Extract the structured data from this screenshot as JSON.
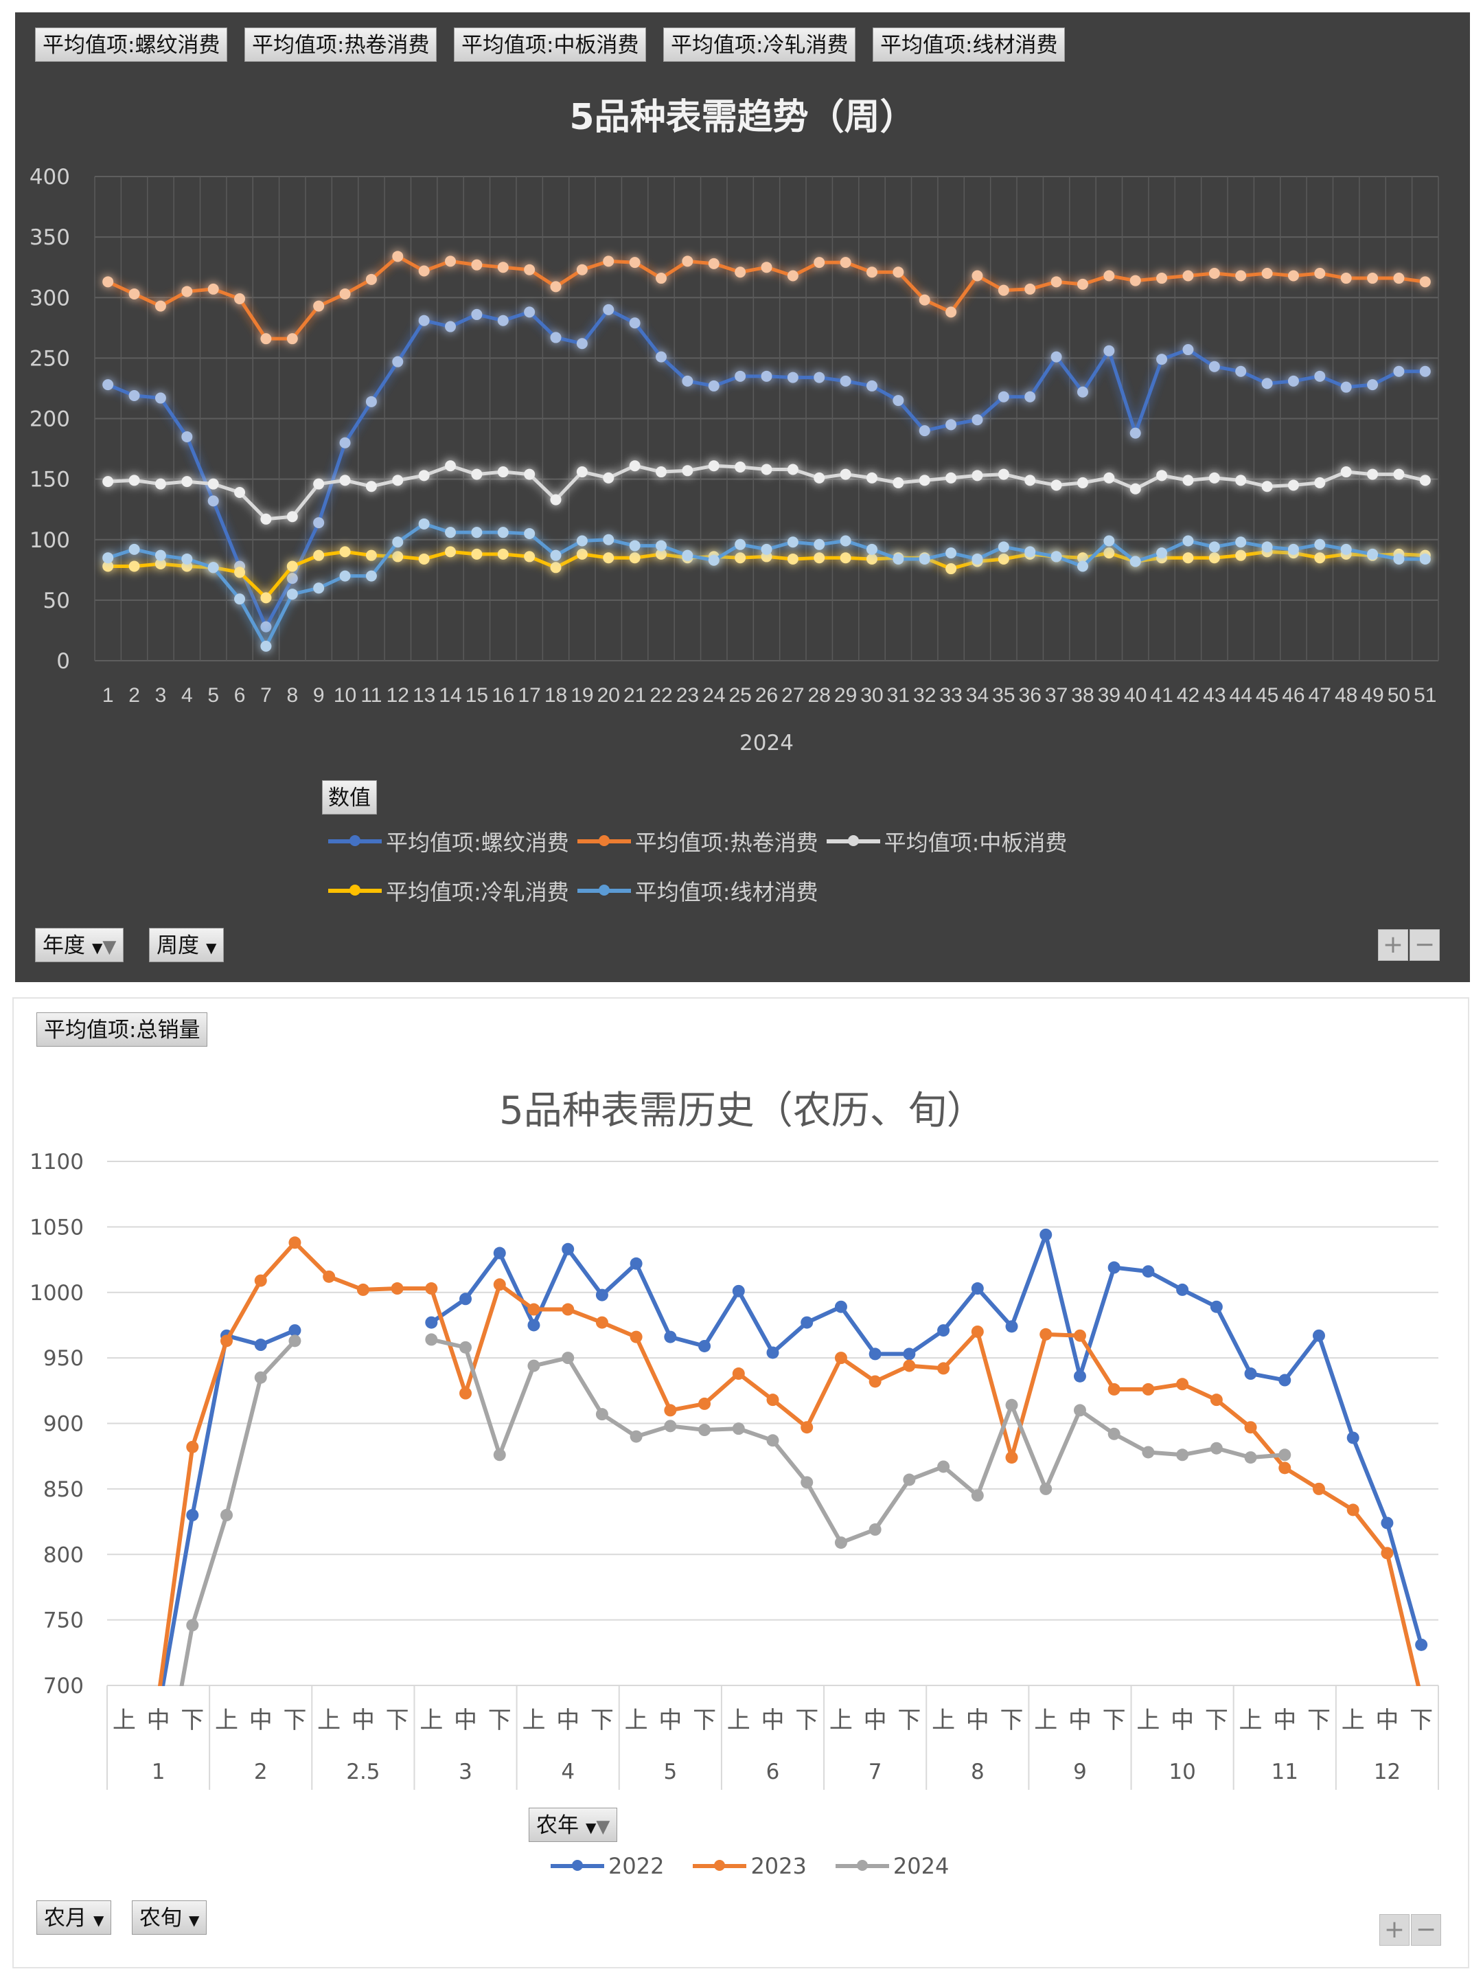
{
  "top_panel": {
    "field_buttons": [
      "平均值项:螺纹消费",
      "平均值项:热卷消费",
      "平均值项:中板消费",
      "平均值项:冷轧消费",
      "平均值项:线材消费"
    ],
    "title": "5品种表需趋势（周）",
    "values_button": "数值",
    "filter_buttons": [
      {
        "label": "年度",
        "icon": "filter-icon"
      },
      {
        "label": "周度",
        "icon": "dropdown-icon"
      }
    ],
    "zoom_in": "+",
    "zoom_out": "−"
  },
  "bottom_panel": {
    "field_buttons": [
      "平均值项:总销量"
    ],
    "title": "5品种表需历史（农历、旬）",
    "legend_filter_button": {
      "label": "农年",
      "icon": "filter-icon"
    },
    "filter_buttons": [
      {
        "label": "农月",
        "icon": "dropdown-icon"
      },
      {
        "label": "农旬",
        "icon": "dropdown-icon"
      }
    ],
    "zoom_in": "+",
    "zoom_out": "−"
  },
  "chart_data": [
    {
      "type": "line",
      "title": "5品种表需趋势（周）",
      "xlabel": "2024",
      "ylabel": "",
      "ylim": [
        0,
        400
      ],
      "yticks": [
        0,
        50,
        100,
        150,
        200,
        250,
        300,
        350,
        400
      ],
      "grid": true,
      "legend_position": "bottom",
      "background": "#404040",
      "categories": [
        "1",
        "2",
        "3",
        "4",
        "5",
        "6",
        "7",
        "8",
        "9",
        "10",
        "11",
        "12",
        "13",
        "14",
        "15",
        "16",
        "17",
        "18",
        "19",
        "20",
        "21",
        "22",
        "23",
        "24",
        "25",
        "26",
        "27",
        "28",
        "29",
        "30",
        "31",
        "32",
        "33",
        "34",
        "35",
        "36",
        "37",
        "38",
        "39",
        "40",
        "41",
        "42",
        "43",
        "44",
        "45",
        "46",
        "47",
        "48",
        "49",
        "50",
        "51"
      ],
      "series": [
        {
          "name": "平均值项:螺纹消费",
          "color": "#4472C4",
          "values": [
            228,
            219,
            217,
            185,
            132,
            78,
            28,
            68,
            114,
            180,
            214,
            247,
            281,
            276,
            286,
            281,
            288,
            267,
            262,
            290,
            279,
            251,
            231,
            227,
            235,
            235,
            234,
            234,
            231,
            227,
            215,
            190,
            195,
            199,
            218,
            218,
            251,
            222,
            256,
            188,
            249,
            257,
            243,
            239,
            229,
            231,
            235,
            226,
            228,
            239,
            239
          ]
        },
        {
          "name": "平均值项:热卷消费",
          "color": "#ED7D31",
          "values": [
            313,
            303,
            293,
            305,
            307,
            299,
            266,
            266,
            293,
            303,
            315,
            334,
            322,
            330,
            327,
            325,
            323,
            309,
            323,
            330,
            329,
            316,
            330,
            328,
            321,
            325,
            318,
            329,
            329,
            321,
            321,
            298,
            288,
            318,
            306,
            307,
            313,
            311,
            318,
            314,
            316,
            318,
            320,
            318,
            320,
            318,
            320,
            316,
            316,
            316,
            313
          ]
        },
        {
          "name": "平均值项:中板消费",
          "color": "#D9D9D9",
          "values": [
            148,
            149,
            146,
            148,
            146,
            139,
            117,
            119,
            146,
            149,
            144,
            149,
            153,
            161,
            154,
            156,
            154,
            133,
            156,
            151,
            161,
            156,
            157,
            161,
            160,
            158,
            158,
            151,
            154,
            151,
            147,
            149,
            151,
            153,
            154,
            149,
            145,
            147,
            151,
            142,
            153,
            149,
            151,
            149,
            144,
            145,
            147,
            156,
            154,
            154,
            149
          ]
        },
        {
          "name": "平均值项:冷轧消费",
          "color": "#FFC000",
          "values": [
            78,
            78,
            80,
            78,
            77,
            73,
            52,
            78,
            87,
            90,
            87,
            86,
            84,
            90,
            88,
            88,
            86,
            77,
            88,
            85,
            85,
            88,
            85,
            86,
            85,
            86,
            84,
            85,
            85,
            84,
            85,
            85,
            76,
            82,
            84,
            88,
            86,
            85,
            89,
            82,
            85,
            85,
            85,
            87,
            90,
            89,
            85,
            88,
            87,
            88,
            87
          ]
        },
        {
          "name": "平均值项:线材消费",
          "color": "#5B9BD5",
          "values": [
            85,
            92,
            87,
            84,
            77,
            51,
            12,
            55,
            60,
            70,
            70,
            98,
            113,
            106,
            106,
            106,
            105,
            87,
            99,
            100,
            95,
            95,
            87,
            83,
            96,
            92,
            98,
            96,
            99,
            92,
            84,
            84,
            89,
            84,
            94,
            90,
            86,
            78,
            99,
            82,
            89,
            99,
            94,
            98,
            94,
            92,
            96,
            92,
            88,
            84,
            84
          ]
        }
      ]
    },
    {
      "type": "line",
      "title": "5品种表需历史（农历、旬）",
      "xlabel": "",
      "ylabel": "",
      "ylim": [
        700,
        1100
      ],
      "yticks": [
        700,
        750,
        800,
        850,
        900,
        950,
        1000,
        1050,
        1100
      ],
      "grid": true,
      "legend_position": "bottom",
      "groups": [
        "1",
        "2",
        "2.5",
        "3",
        "4",
        "5",
        "6",
        "7",
        "8",
        "9",
        "10",
        "11",
        "12"
      ],
      "subcategories": [
        "上",
        "中",
        "下"
      ],
      "series": [
        {
          "name": "2022",
          "color": "#4472C4",
          "values": [
            null,
            680,
            830,
            967,
            960,
            971,
            null,
            null,
            null,
            977,
            995,
            1030,
            975,
            1033,
            998,
            1022,
            966,
            959,
            1001,
            954,
            977,
            989,
            953,
            953,
            971,
            1003,
            974,
            1044,
            936,
            1019,
            1016,
            1002,
            989,
            938,
            933,
            967,
            889,
            824,
            731
          ]
        },
        {
          "name": "2023",
          "color": "#ED7D31",
          "values": [
            null,
            690,
            882,
            963,
            1009,
            1038,
            1012,
            1002,
            1003,
            1003,
            923,
            1006,
            987,
            987,
            977,
            966,
            910,
            915,
            938,
            918,
            897,
            950,
            932,
            944,
            942,
            970,
            874,
            968,
            967,
            926,
            926,
            930,
            918,
            897,
            866,
            850,
            834,
            801,
            690
          ]
        },
        {
          "name": "2024",
          "color": "#A5A5A5",
          "values": [
            null,
            600,
            746,
            830,
            935,
            963,
            null,
            null,
            null,
            964,
            958,
            876,
            944,
            950,
            907,
            890,
            898,
            895,
            896,
            887,
            855,
            809,
            819,
            857,
            867,
            845,
            914,
            850,
            910,
            892,
            878,
            876,
            881,
            874,
            876,
            null,
            null,
            null,
            null
          ]
        }
      ]
    }
  ]
}
